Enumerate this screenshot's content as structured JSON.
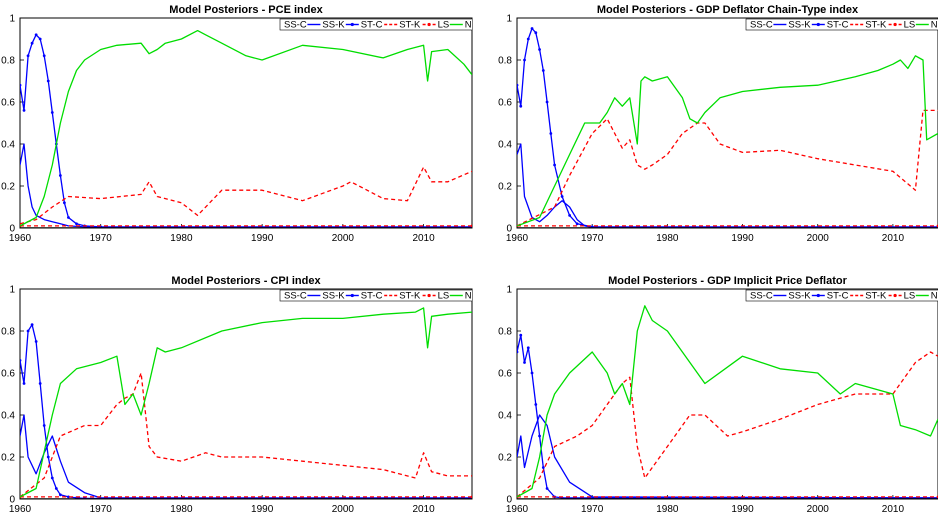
{
  "colors": {
    "SS-C": "#0000ff",
    "SS-K": "#0000ff",
    "ST-C": "#ff0000",
    "ST-K": "#ff0000",
    "LS": "#00dd00",
    "NK": "#000000"
  },
  "chart_data": [
    {
      "type": "line",
      "title": "Model Posteriors - PCE index",
      "xlim": [
        1960,
        2016
      ],
      "ylim": [
        0,
        1
      ],
      "xticks": [
        "1960",
        "1970",
        "1980",
        "1990",
        "2000",
        "2010"
      ],
      "yticks": [
        "0",
        "0.2",
        "0.4",
        "0.6",
        "0.8",
        "1"
      ],
      "legend": [
        "SS-C",
        "SS-K",
        "ST-C",
        "ST-K",
        "LS",
        "NK"
      ],
      "legend_position": "top-right",
      "series": [
        {
          "name": "SS-C",
          "x": [
            1960,
            1960.5,
            1961,
            1961.5,
            1962,
            1963,
            1964,
            1965,
            1966,
            1968,
            1970,
            2016
          ],
          "y": [
            0.3,
            0.4,
            0.2,
            0.1,
            0.06,
            0.04,
            0.03,
            0.02,
            0.01,
            0.005,
            0.002,
            0.002
          ]
        },
        {
          "name": "SS-K",
          "x": [
            1960,
            1960.5,
            1961,
            1961.5,
            1962,
            1962.5,
            1963,
            1963.5,
            1964,
            1964.5,
            1965,
            1965.5,
            1966,
            1967,
            1968,
            1970,
            2016
          ],
          "y": [
            0.68,
            0.56,
            0.82,
            0.88,
            0.92,
            0.9,
            0.82,
            0.7,
            0.55,
            0.4,
            0.25,
            0.12,
            0.05,
            0.02,
            0.01,
            0.005,
            0.005
          ]
        },
        {
          "name": "ST-C",
          "x": [
            1960,
            1962,
            1964,
            1966,
            1970,
            1975,
            1976,
            1977,
            1980,
            1982,
            1985,
            1990,
            1995,
            2000,
            2001,
            2005,
            2008,
            2010,
            2011,
            2013,
            2016
          ],
          "y": [
            0.02,
            0.04,
            0.1,
            0.15,
            0.14,
            0.16,
            0.22,
            0.15,
            0.12,
            0.06,
            0.18,
            0.18,
            0.13,
            0.2,
            0.22,
            0.14,
            0.13,
            0.29,
            0.22,
            0.22,
            0.27
          ]
        },
        {
          "name": "ST-K",
          "x": [
            1960,
            2016
          ],
          "y": [
            0.01,
            0.01
          ]
        },
        {
          "name": "LS",
          "x": [
            1960,
            1962,
            1963,
            1964,
            1965,
            1966,
            1967,
            1968,
            1970,
            1972,
            1975,
            1976,
            1977,
            1978,
            1980,
            1982,
            1983,
            1985,
            1988,
            1990,
            1995,
            2000,
            2005,
            2008,
            2010,
            2010.5,
            2011,
            2013,
            2015,
            2016
          ],
          "y": [
            0.01,
            0.05,
            0.15,
            0.3,
            0.5,
            0.65,
            0.75,
            0.8,
            0.85,
            0.87,
            0.88,
            0.83,
            0.85,
            0.88,
            0.9,
            0.94,
            0.92,
            0.88,
            0.82,
            0.8,
            0.87,
            0.85,
            0.81,
            0.85,
            0.87,
            0.7,
            0.84,
            0.85,
            0.78,
            0.73
          ]
        },
        {
          "name": "NK",
          "x": [
            1960,
            2016
          ],
          "y": [
            0.0,
            0.0
          ]
        }
      ]
    },
    {
      "type": "line",
      "title": "Model Posteriors - GDP Deflator Chain-Type index",
      "xlim": [
        1960,
        2016
      ],
      "ylim": [
        0,
        1
      ],
      "xticks": [
        "1960",
        "1970",
        "1980",
        "1990",
        "2000",
        "2010"
      ],
      "yticks": [
        "0",
        "0.2",
        "0.4",
        "0.6",
        "0.8",
        "1"
      ],
      "legend": [
        "SS-C",
        "SS-K",
        "ST-C",
        "ST-K",
        "LS",
        "NK"
      ],
      "legend_position": "top-right",
      "series": [
        {
          "name": "SS-C",
          "x": [
            1960,
            1960.5,
            1961,
            1962,
            1963,
            1964,
            1965,
            1966,
            1967,
            1968,
            1969,
            1970,
            2016
          ],
          "y": [
            0.35,
            0.4,
            0.15,
            0.05,
            0.03,
            0.06,
            0.1,
            0.13,
            0.1,
            0.04,
            0.01,
            0.003,
            0.003
          ]
        },
        {
          "name": "SS-K",
          "x": [
            1960,
            1960.5,
            1961,
            1961.5,
            1962,
            1962.5,
            1963,
            1963.5,
            1964,
            1964.5,
            1965,
            1966,
            1967,
            1968,
            1970,
            2016
          ],
          "y": [
            0.68,
            0.58,
            0.8,
            0.9,
            0.95,
            0.93,
            0.85,
            0.75,
            0.6,
            0.45,
            0.3,
            0.15,
            0.06,
            0.02,
            0.005,
            0.005
          ]
        },
        {
          "name": "ST-C",
          "x": [
            1960,
            1965,
            1967,
            1970,
            1972,
            1974,
            1975,
            1976,
            1977,
            1978,
            1980,
            1982,
            1984,
            1985,
            1987,
            1990,
            1995,
            2000,
            2005,
            2010,
            2013,
            2014,
            2016
          ],
          "y": [
            0.01,
            0.1,
            0.25,
            0.45,
            0.52,
            0.38,
            0.42,
            0.3,
            0.28,
            0.3,
            0.35,
            0.45,
            0.5,
            0.5,
            0.4,
            0.36,
            0.37,
            0.33,
            0.3,
            0.27,
            0.18,
            0.56,
            0.56
          ]
        },
        {
          "name": "ST-K",
          "x": [
            1960,
            2016
          ],
          "y": [
            0.01,
            0.01
          ]
        },
        {
          "name": "LS",
          "x": [
            1960,
            1963,
            1965,
            1967,
            1969,
            1971,
            1972,
            1973,
            1974,
            1975,
            1976,
            1976.5,
            1977,
            1978,
            1980,
            1982,
            1983,
            1984,
            1985,
            1987,
            1990,
            1995,
            2000,
            2005,
            2008,
            2010,
            2011,
            2012,
            2013,
            2014,
            2014.5,
            2016
          ],
          "y": [
            0.01,
            0.05,
            0.2,
            0.35,
            0.5,
            0.5,
            0.55,
            0.62,
            0.58,
            0.62,
            0.4,
            0.7,
            0.72,
            0.7,
            0.72,
            0.62,
            0.52,
            0.5,
            0.55,
            0.62,
            0.65,
            0.67,
            0.68,
            0.72,
            0.75,
            0.78,
            0.8,
            0.76,
            0.82,
            0.8,
            0.42,
            0.45
          ]
        },
        {
          "name": "NK",
          "x": [
            1960,
            2016
          ],
          "y": [
            0.0,
            0.0
          ]
        }
      ]
    },
    {
      "type": "line",
      "title": "Model Posteriors - CPI index",
      "xlim": [
        1960,
        2016
      ],
      "ylim": [
        0,
        1
      ],
      "xticks": [
        "1960",
        "1970",
        "1980",
        "1990",
        "2000",
        "2010"
      ],
      "yticks": [
        "0",
        "0.2",
        "0.4",
        "0.6",
        "0.8",
        "1"
      ],
      "legend": [
        "SS-C",
        "SS-K",
        "ST-C",
        "ST-K",
        "LS",
        "NK"
      ],
      "legend_position": "top-right",
      "series": [
        {
          "name": "SS-C",
          "x": [
            1960,
            1960.5,
            1961,
            1962,
            1963,
            1964,
            1965,
            1966,
            1968,
            1970,
            2016
          ],
          "y": [
            0.3,
            0.4,
            0.2,
            0.12,
            0.22,
            0.3,
            0.18,
            0.08,
            0.03,
            0.005,
            0.005
          ]
        },
        {
          "name": "SS-K",
          "x": [
            1960,
            1960.5,
            1961,
            1961.5,
            1962,
            1962.5,
            1963,
            1963.5,
            1964,
            1964.5,
            1965,
            1966,
            1967,
            1968,
            2016
          ],
          "y": [
            0.66,
            0.55,
            0.8,
            0.83,
            0.75,
            0.55,
            0.35,
            0.2,
            0.1,
            0.05,
            0.02,
            0.01,
            0.005,
            0.003,
            0.003
          ]
        },
        {
          "name": "ST-C",
          "x": [
            1960,
            1963,
            1965,
            1968,
            1970,
            1972,
            1973,
            1974,
            1975,
            1976,
            1977,
            1980,
            1983,
            1985,
            1990,
            1995,
            2000,
            2005,
            2009,
            2010,
            2011,
            2013,
            2016
          ],
          "y": [
            0.01,
            0.1,
            0.3,
            0.35,
            0.35,
            0.45,
            0.48,
            0.5,
            0.6,
            0.25,
            0.2,
            0.18,
            0.22,
            0.2,
            0.2,
            0.18,
            0.16,
            0.14,
            0.1,
            0.22,
            0.13,
            0.11,
            0.11
          ]
        },
        {
          "name": "ST-K",
          "x": [
            1960,
            2016
          ],
          "y": [
            0.01,
            0.01
          ]
        },
        {
          "name": "LS",
          "x": [
            1960,
            1962,
            1964,
            1965,
            1967,
            1970,
            1972,
            1973,
            1974,
            1975,
            1976,
            1977,
            1978,
            1980,
            1985,
            1990,
            1995,
            2000,
            2005,
            2009,
            2010,
            2010.5,
            2011,
            2013,
            2016
          ],
          "y": [
            0.01,
            0.05,
            0.4,
            0.55,
            0.62,
            0.65,
            0.68,
            0.45,
            0.5,
            0.4,
            0.55,
            0.72,
            0.7,
            0.72,
            0.8,
            0.84,
            0.86,
            0.86,
            0.88,
            0.89,
            0.91,
            0.72,
            0.87,
            0.88,
            0.89
          ]
        },
        {
          "name": "NK",
          "x": [
            1960,
            2016
          ],
          "y": [
            0.0,
            0.0
          ]
        }
      ]
    },
    {
      "type": "line",
      "title": "Model Posteriors - GDP Implicit Price Deflator",
      "xlim": [
        1960,
        2016
      ],
      "ylim": [
        0,
        1
      ],
      "xticks": [
        "1960",
        "1970",
        "1980",
        "1990",
        "2000",
        "2010"
      ],
      "yticks": [
        "0",
        "0.2",
        "0.4",
        "0.6",
        "0.8",
        "1"
      ],
      "legend": [
        "SS-C",
        "SS-K",
        "ST-C",
        "ST-K",
        "LS",
        "NK"
      ],
      "legend_position": "top-right",
      "series": [
        {
          "name": "SS-C",
          "x": [
            1960,
            1960.5,
            1961,
            1962,
            1963,
            1964,
            1965,
            1967,
            1970,
            2016
          ],
          "y": [
            0.2,
            0.3,
            0.15,
            0.3,
            0.4,
            0.35,
            0.2,
            0.08,
            0.01,
            0.005
          ]
        },
        {
          "name": "SS-K",
          "x": [
            1960,
            1960.5,
            1961,
            1961.5,
            1962,
            1962.5,
            1963,
            1963.5,
            1964,
            1965,
            1966,
            2016
          ],
          "y": [
            0.7,
            0.78,
            0.65,
            0.72,
            0.6,
            0.45,
            0.3,
            0.15,
            0.05,
            0.01,
            0.005,
            0.005
          ]
        },
        {
          "name": "ST-C",
          "x": [
            1960,
            1963,
            1965,
            1968,
            1970,
            1972,
            1974,
            1975,
            1976,
            1977,
            1978,
            1980,
            1983,
            1985,
            1988,
            1990,
            1995,
            2000,
            2005,
            2010,
            2013,
            2015,
            2016
          ],
          "y": [
            0.01,
            0.1,
            0.25,
            0.3,
            0.35,
            0.45,
            0.55,
            0.58,
            0.25,
            0.1,
            0.15,
            0.25,
            0.4,
            0.4,
            0.3,
            0.32,
            0.38,
            0.45,
            0.5,
            0.5,
            0.65,
            0.7,
            0.68
          ]
        },
        {
          "name": "ST-K",
          "x": [
            1960,
            2016
          ],
          "y": [
            0.01,
            0.01
          ]
        },
        {
          "name": "LS",
          "x": [
            1960,
            1962,
            1963,
            1964,
            1965,
            1967,
            1970,
            1971,
            1972,
            1973,
            1974,
            1975,
            1976,
            1977,
            1978,
            1980,
            1983,
            1985,
            1990,
            1995,
            2000,
            2003,
            2005,
            2010,
            2011,
            2013,
            2015,
            2016
          ],
          "y": [
            0.01,
            0.05,
            0.2,
            0.4,
            0.5,
            0.6,
            0.7,
            0.65,
            0.6,
            0.5,
            0.55,
            0.45,
            0.8,
            0.92,
            0.85,
            0.8,
            0.65,
            0.55,
            0.68,
            0.62,
            0.6,
            0.5,
            0.55,
            0.5,
            0.35,
            0.33,
            0.3,
            0.38
          ]
        },
        {
          "name": "NK",
          "x": [
            1960,
            2016
          ],
          "y": [
            0.0,
            0.0
          ]
        }
      ]
    }
  ]
}
